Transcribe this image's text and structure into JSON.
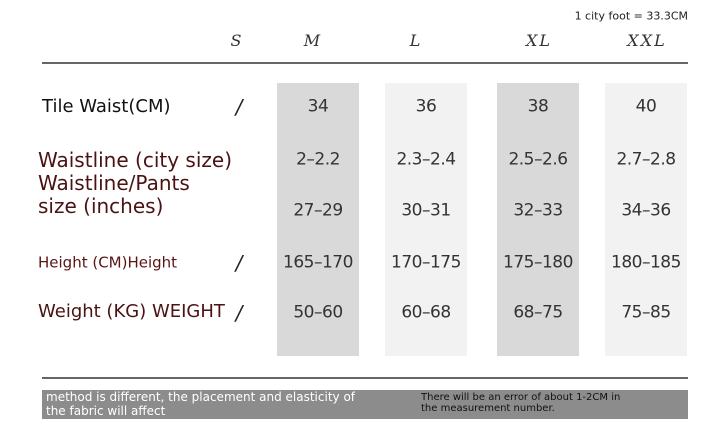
{
  "note": "1 city foot = 33.3CM",
  "columns": [
    "S",
    "M",
    "L",
    "XL",
    "XXL"
  ],
  "rows": [
    {
      "label": [
        "Tile Waist(CM)"
      ],
      "s": "/",
      "values": [
        "34",
        "36",
        "38",
        "40"
      ]
    },
    {
      "label": [
        "Waistline (city size)"
      ],
      "values": [
        "2–2.2",
        "2.3–2.4",
        "2.5–2.6",
        "2.7–2.8"
      ]
    },
    {
      "label": [
        "Waistline/Pants",
        "size (inches)"
      ],
      "values": [
        "27–29",
        "30–31",
        "32–33",
        "34–36"
      ]
    },
    {
      "label": [
        "Height (CM)Height"
      ],
      "s": "/",
      "values": [
        "165–170",
        "170–175",
        "175–180",
        "180–185"
      ]
    },
    {
      "label": [
        "Weight (KG) WEIGHT"
      ],
      "s": "/",
      "values": [
        "50–60",
        "60–68",
        "68–75",
        "75–85"
      ]
    }
  ],
  "footer": {
    "left": [
      "method is different, the placement and elasticity of",
      "the fabric will affect"
    ],
    "right": [
      "There will be an error of about 1-2CM in",
      "the measurement number."
    ]
  }
}
